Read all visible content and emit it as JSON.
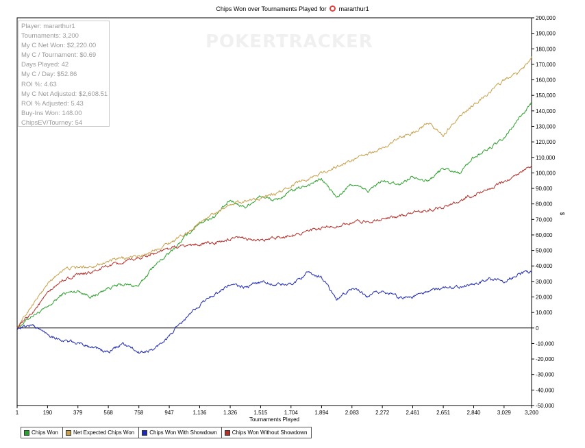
{
  "window": {
    "title_prefix": "Chips Won over Tournaments Played for",
    "player_name": "mararthur1",
    "logo_icon": "pokerstars-logo-icon"
  },
  "watermark": "POKERTRACKER",
  "stats": [
    "Player: mararthur1",
    "Tournaments: 3,200",
    "My C Net Won: $2,220.00",
    "My C / Tournament: $0.69",
    "Days Played: 42",
    "My C / Day: $52.86",
    "ROI %: 4.63",
    "My C Net Adjusted: $2,608.51",
    "ROI % Adjusted: 5.43",
    "Buy-Ins Won: 148.00",
    "ChipsEV/Tourney: 54"
  ],
  "chart_data": {
    "type": "line",
    "title": "Chips Won over Tournaments Played for mararthur1",
    "xlabel": "Tournaments Played",
    "ylabel": "$",
    "xlim": [
      1,
      3200
    ],
    "ylim": [
      -50000,
      200000
    ],
    "x_ticks": [
      1,
      190,
      379,
      568,
      758,
      947,
      1136,
      1326,
      1515,
      1704,
      1894,
      2083,
      2272,
      2461,
      2651,
      2840,
      3029,
      3200
    ],
    "x_tick_labels": [
      "1",
      "190",
      "379",
      "568",
      "758",
      "947",
      "1,136",
      "1,326",
      "1,515",
      "1,704",
      "1,894",
      "2,083",
      "2,272",
      "2,461",
      "2,651",
      "2,840",
      "3,029",
      "3,200"
    ],
    "y_ticks": [
      -50000,
      -40000,
      -30000,
      -20000,
      -10000,
      0,
      10000,
      20000,
      30000,
      40000,
      50000,
      60000,
      70000,
      80000,
      90000,
      100000,
      110000,
      120000,
      130000,
      140000,
      150000,
      160000,
      170000,
      180000,
      190000,
      200000
    ],
    "y_tick_labels": [
      "-50,000",
      "-40,000",
      "-30,000",
      "-20,000",
      "-10,000",
      "0",
      "10,000",
      "20,000",
      "30,000",
      "40,000",
      "50,000",
      "60,000",
      "70,000",
      "80,000",
      "90,000",
      "100,000",
      "110,000",
      "120,000",
      "130,000",
      "140,000",
      "150,000",
      "160,000",
      "170,000",
      "180,000",
      "190,000",
      "200,000"
    ],
    "grid": false,
    "legend_position": "bottom",
    "series": [
      {
        "name": "Chips Won",
        "color": "#2ca02c",
        "x": [
          1,
          95,
          190,
          285,
          379,
          470,
          568,
          660,
          758,
          850,
          947,
          1040,
          1136,
          1230,
          1326,
          1420,
          1515,
          1610,
          1704,
          1800,
          1894,
          1990,
          2083,
          2180,
          2272,
          2370,
          2461,
          2560,
          2651,
          2750,
          2840,
          2940,
          3029,
          3120,
          3200
        ],
        "y": [
          0,
          8000,
          13000,
          22000,
          24000,
          20000,
          26000,
          28000,
          27000,
          40000,
          48000,
          58000,
          68000,
          72000,
          82000,
          78000,
          85000,
          82000,
          88000,
          92000,
          96000,
          84000,
          93000,
          88000,
          95000,
          92000,
          98000,
          95000,
          103000,
          100000,
          110000,
          116000,
          122000,
          135000,
          145000
        ]
      },
      {
        "name": "Net Expected Chips Won",
        "color": "#c8a04a",
        "x": [
          1,
          95,
          190,
          285,
          379,
          470,
          568,
          660,
          758,
          850,
          947,
          1040,
          1136,
          1230,
          1326,
          1420,
          1515,
          1610,
          1704,
          1800,
          1894,
          1990,
          2083,
          2180,
          2272,
          2370,
          2461,
          2560,
          2651,
          2750,
          2840,
          2940,
          3029,
          3120,
          3200
        ],
        "y": [
          0,
          15000,
          28000,
          38000,
          39000,
          40000,
          43000,
          45000,
          46000,
          50000,
          55000,
          60000,
          68000,
          74000,
          80000,
          82000,
          84000,
          86000,
          92000,
          96000,
          100000,
          104000,
          108000,
          112000,
          116000,
          122000,
          126000,
          132000,
          124000,
          136000,
          144000,
          152000,
          160000,
          164000,
          175000
        ]
      },
      {
        "name": "Chips Won With Showdown",
        "color": "#1f2ab4",
        "x": [
          1,
          95,
          190,
          285,
          379,
          470,
          568,
          660,
          758,
          850,
          947,
          1040,
          1136,
          1230,
          1326,
          1420,
          1515,
          1610,
          1704,
          1800,
          1894,
          1990,
          2083,
          2180,
          2272,
          2370,
          2461,
          2560,
          2651,
          2750,
          2840,
          2940,
          3029,
          3120,
          3200
        ],
        "y": [
          0,
          2000,
          -4000,
          -8000,
          -10000,
          -12000,
          -16000,
          -10000,
          -16000,
          -14000,
          -5000,
          5000,
          15000,
          22000,
          28000,
          26000,
          30000,
          28000,
          28000,
          35000,
          33000,
          18000,
          26000,
          20000,
          24000,
          20000,
          20000,
          24000,
          26000,
          27000,
          28000,
          32000,
          30000,
          35000,
          36000
        ]
      },
      {
        "name": "Chips Won Without Showdown",
        "color": "#b5302a",
        "x": [
          1,
          95,
          190,
          285,
          379,
          470,
          568,
          660,
          758,
          850,
          947,
          1040,
          1136,
          1230,
          1326,
          1420,
          1515,
          1610,
          1704,
          1800,
          1894,
          1990,
          2083,
          2180,
          2272,
          2370,
          2461,
          2560,
          2651,
          2750,
          2840,
          2940,
          3029,
          3120,
          3200
        ],
        "y": [
          0,
          10000,
          22000,
          31000,
          34000,
          36000,
          40000,
          42000,
          45000,
          48000,
          51000,
          53000,
          54000,
          55000,
          57000,
          58000,
          56000,
          58000,
          60000,
          62000,
          64000,
          66000,
          68000,
          69000,
          70000,
          72000,
          74000,
          76000,
          78000,
          82000,
          86000,
          90000,
          94000,
          100000,
          105000
        ]
      }
    ]
  }
}
